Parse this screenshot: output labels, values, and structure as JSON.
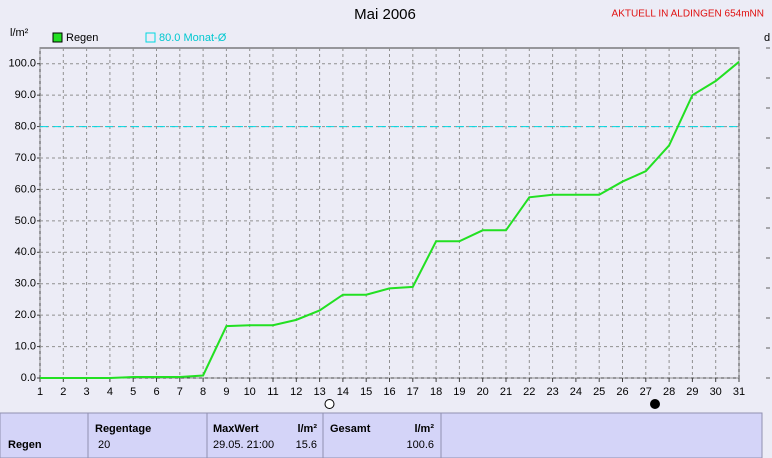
{
  "chart_data": {
    "type": "line",
    "title": "Mai 2006",
    "station": "AKTUELL IN ALDINGEN 654mNN",
    "y_label": "l/m²",
    "right_label": "d",
    "x": [
      1,
      2,
      3,
      4,
      5,
      6,
      7,
      8,
      9,
      10,
      11,
      12,
      13,
      14,
      15,
      16,
      17,
      18,
      19,
      20,
      21,
      22,
      23,
      24,
      25,
      26,
      27,
      28,
      29,
      30,
      31
    ],
    "series": [
      {
        "name": "Regen",
        "color": "#22e022",
        "values": [
          0,
          0,
          0,
          0,
          0.3,
          0.3,
          0.3,
          0.8,
          16.5,
          16.8,
          16.8,
          18.5,
          21.5,
          26.5,
          26.5,
          28.5,
          29,
          43.5,
          43.5,
          47,
          47,
          57.5,
          58.3,
          58.3,
          58.3,
          62.5,
          65.8,
          74,
          90,
          94.5,
          100.6
        ]
      }
    ],
    "reference": {
      "value": 80,
      "label": "80.0 Monat-Ø",
      "color": "#00d8e0"
    },
    "xlim": [
      1,
      31
    ],
    "xticks": [
      1,
      2,
      3,
      4,
      5,
      6,
      7,
      8,
      9,
      10,
      11,
      12,
      13,
      14,
      15,
      16,
      17,
      18,
      19,
      20,
      21,
      22,
      23,
      24,
      25,
      26,
      27,
      28,
      29,
      30,
      31
    ],
    "ylim": [
      0,
      105
    ],
    "yticks": [
      {
        "value": 0,
        "label": "0.0"
      },
      {
        "value": 10,
        "label": "10.0"
      },
      {
        "value": 20,
        "label": "20.0"
      },
      {
        "value": 30,
        "label": "30.0"
      },
      {
        "value": 40,
        "label": "40.0"
      },
      {
        "value": 50,
        "label": "50.0"
      },
      {
        "value": 60,
        "label": "60.0"
      },
      {
        "value": 70,
        "label": "70.0"
      },
      {
        "value": 80,
        "label": "80.0"
      },
      {
        "value": 90,
        "label": "90.0"
      },
      {
        "value": 100,
        "label": "100.0"
      }
    ],
    "grid": true
  },
  "summary": {
    "row_label": "Regen",
    "regentage": {
      "header": "Regentage",
      "value": "20"
    },
    "maxwert": {
      "header": "MaxWert",
      "unit": "l/m²",
      "time": "29.05.  21:00",
      "value": "15.6"
    },
    "gesamt": {
      "header": "Gesamt",
      "unit": "l/m²",
      "value": "100.6"
    }
  }
}
